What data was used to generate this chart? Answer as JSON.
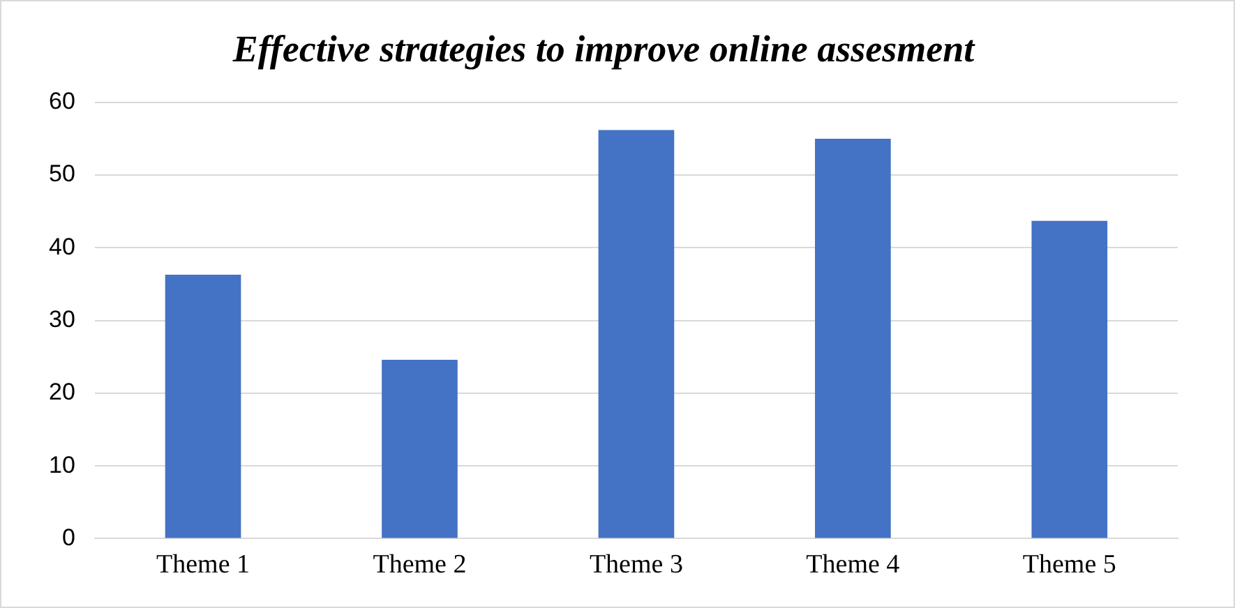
{
  "chart_data": {
    "type": "bar",
    "title": "Effective strategies to improve online assesment",
    "categories": [
      "Theme 1",
      "Theme 2",
      "Theme 3",
      "Theme 4",
      "Theme 5"
    ],
    "values": [
      36.3,
      24.6,
      56.2,
      55.0,
      43.7
    ],
    "color": "#4472c4",
    "ylim": [
      0,
      60
    ],
    "yticks": [
      0,
      10,
      20,
      30,
      40,
      50,
      60
    ],
    "grid": "y"
  }
}
